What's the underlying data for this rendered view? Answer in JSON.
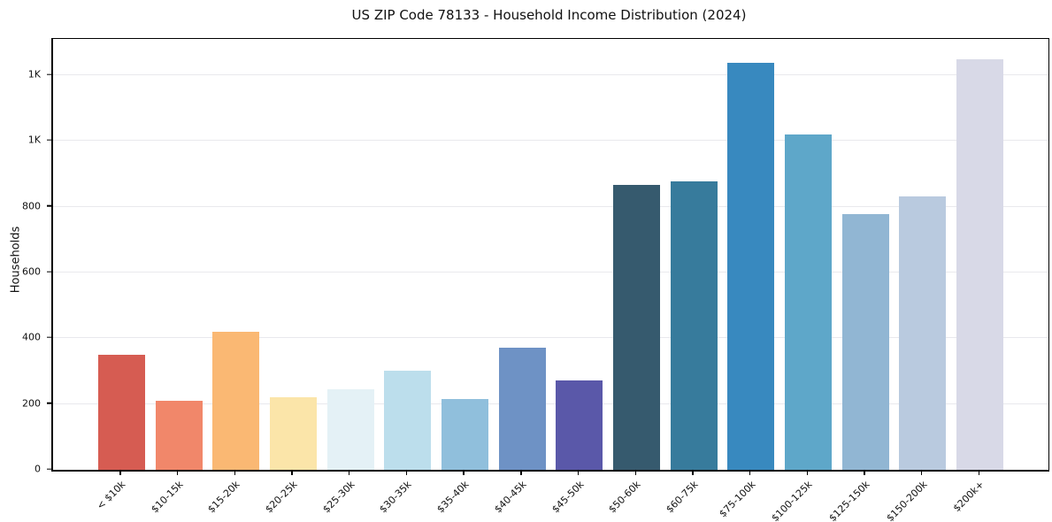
{
  "chart_data": {
    "type": "bar",
    "title": "US ZIP Code 78133 - Household Income Distribution (2024)",
    "xlabel": "",
    "ylabel": "Households",
    "categories": [
      "< $10k",
      "$10-15k",
      "$15-20k",
      "$20-25k",
      "$25-30k",
      "$30-35k",
      "$35-40k",
      "$40-45k",
      "$45-50k",
      "$50-60k",
      "$60-75k",
      "$75-100k",
      "$100-125k",
      "$125-150k",
      "$150-200k",
      "$200k+"
    ],
    "values": [
      350,
      210,
      420,
      220,
      246,
      300,
      215,
      370,
      271,
      865,
      878,
      1238,
      1020,
      777,
      830,
      1247
    ],
    "bar_colors": [
      "#d65c52",
      "#f1876a",
      "#fab873",
      "#fbe5a9",
      "#e4f1f6",
      "#bcdeec",
      "#90bfdc",
      "#6e92c5",
      "#5a58a9",
      "#365a6e",
      "#377b9c",
      "#3889bf",
      "#5ea7c9",
      "#91b6d3",
      "#b9cadf",
      "#d8d9e7"
    ],
    "ylim": [
      0,
      1310
    ],
    "yticks": [
      {
        "value": 0,
        "label": "0"
      },
      {
        "value": 200,
        "label": "200"
      },
      {
        "value": 400,
        "label": "400"
      },
      {
        "value": 600,
        "label": "600"
      },
      {
        "value": 800,
        "label": "800"
      },
      {
        "value": 1000,
        "label": "1K"
      },
      {
        "value": 1200,
        "label": "1K"
      }
    ],
    "grid": "horizontal",
    "legend": "none",
    "colors": {
      "background": "#ffffff",
      "gridline": "#e9e9ed",
      "axis": "#000000",
      "text": "#111111"
    }
  }
}
